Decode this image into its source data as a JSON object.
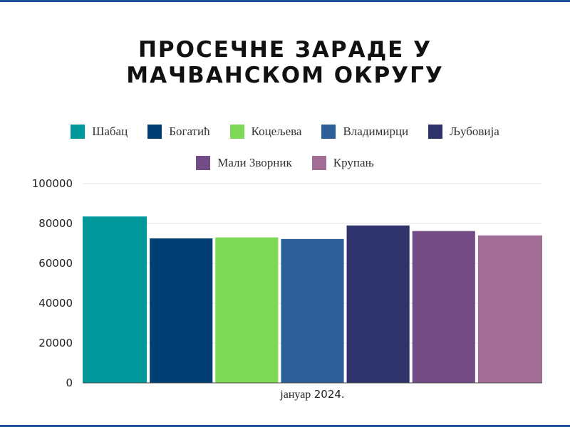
{
  "chart_data": {
    "type": "bar",
    "title_lines": [
      "ПРОСЕЧНЕ ЗАРАДЕ У",
      "МАЧВАНСКОМ ОКРУГУ"
    ],
    "categories": [
      "јануар 2024."
    ],
    "category_words": [
      "јануар",
      "2024."
    ],
    "series": [
      {
        "name": "Шабац",
        "values": [
          83500
        ],
        "color": "#00989b"
      },
      {
        "name": "Богатић",
        "values": [
          72500
        ],
        "color": "#003f73"
      },
      {
        "name": "Коцељева",
        "values": [
          73000
        ],
        "color": "#7ed957"
      },
      {
        "name": "Владимирци",
        "values": [
          72200
        ],
        "color": "#2d5f99"
      },
      {
        "name": "Љубовија",
        "values": [
          79000
        ],
        "color": "#2f336b"
      },
      {
        "name": "Мали Зворник",
        "values": [
          76200
        ],
        "color": "#734c86"
      },
      {
        "name": "Крупањ",
        "values": [
          74000
        ],
        "color": "#a26e97"
      }
    ],
    "ylim": [
      0,
      100000
    ],
    "yticks": [
      "0",
      "20000",
      "40000",
      "60000",
      "80000",
      "100000"
    ],
    "grid": true,
    "legend_position": "top",
    "xlabel": "",
    "ylabel": ""
  },
  "colors": {
    "edge_line": "#1f4e9c",
    "grid": "#e6e6e6",
    "axis": "#444444"
  }
}
